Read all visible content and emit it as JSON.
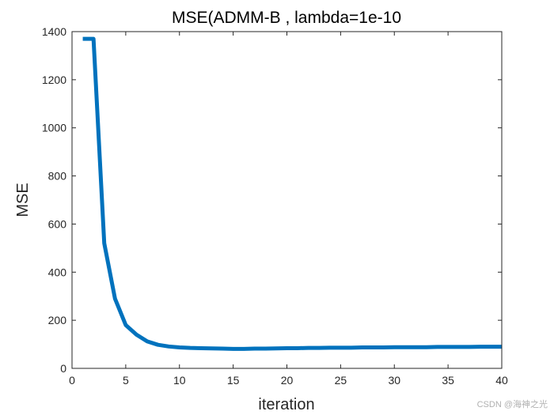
{
  "chart_data": {
    "type": "line",
    "title": "MSE(ADMM-B , lambda=1e-10",
    "xlabel": "iteration",
    "ylabel": "MSE",
    "xlim": [
      0,
      40
    ],
    "ylim": [
      0,
      1400
    ],
    "xticks": [
      0,
      5,
      10,
      15,
      20,
      25,
      30,
      35,
      40
    ],
    "yticks": [
      0,
      200,
      400,
      600,
      800,
      1000,
      1200,
      1400
    ],
    "grid": false,
    "colors": {
      "line": "#0072BD",
      "axes": "#262626"
    },
    "series": [
      {
        "x": [
          1,
          2,
          3,
          4,
          5,
          6,
          7,
          8,
          9,
          10,
          11,
          12,
          13,
          14,
          15,
          16,
          17,
          18,
          19,
          20,
          21,
          22,
          23,
          24,
          25,
          26,
          27,
          28,
          29,
          30,
          31,
          32,
          33,
          34,
          35,
          36,
          37,
          38,
          39,
          40
        ],
        "values": [
          1370,
          1370,
          520,
          290,
          180,
          140,
          112,
          98,
          91,
          87,
          85,
          84,
          83,
          82,
          81,
          81,
          82,
          82,
          83,
          84,
          84,
          85,
          85,
          86,
          86,
          86,
          87,
          87,
          87,
          88,
          88,
          88,
          88,
          89,
          89,
          89,
          89,
          90,
          90,
          90
        ]
      }
    ]
  },
  "watermark": "CSDN @海神之光"
}
